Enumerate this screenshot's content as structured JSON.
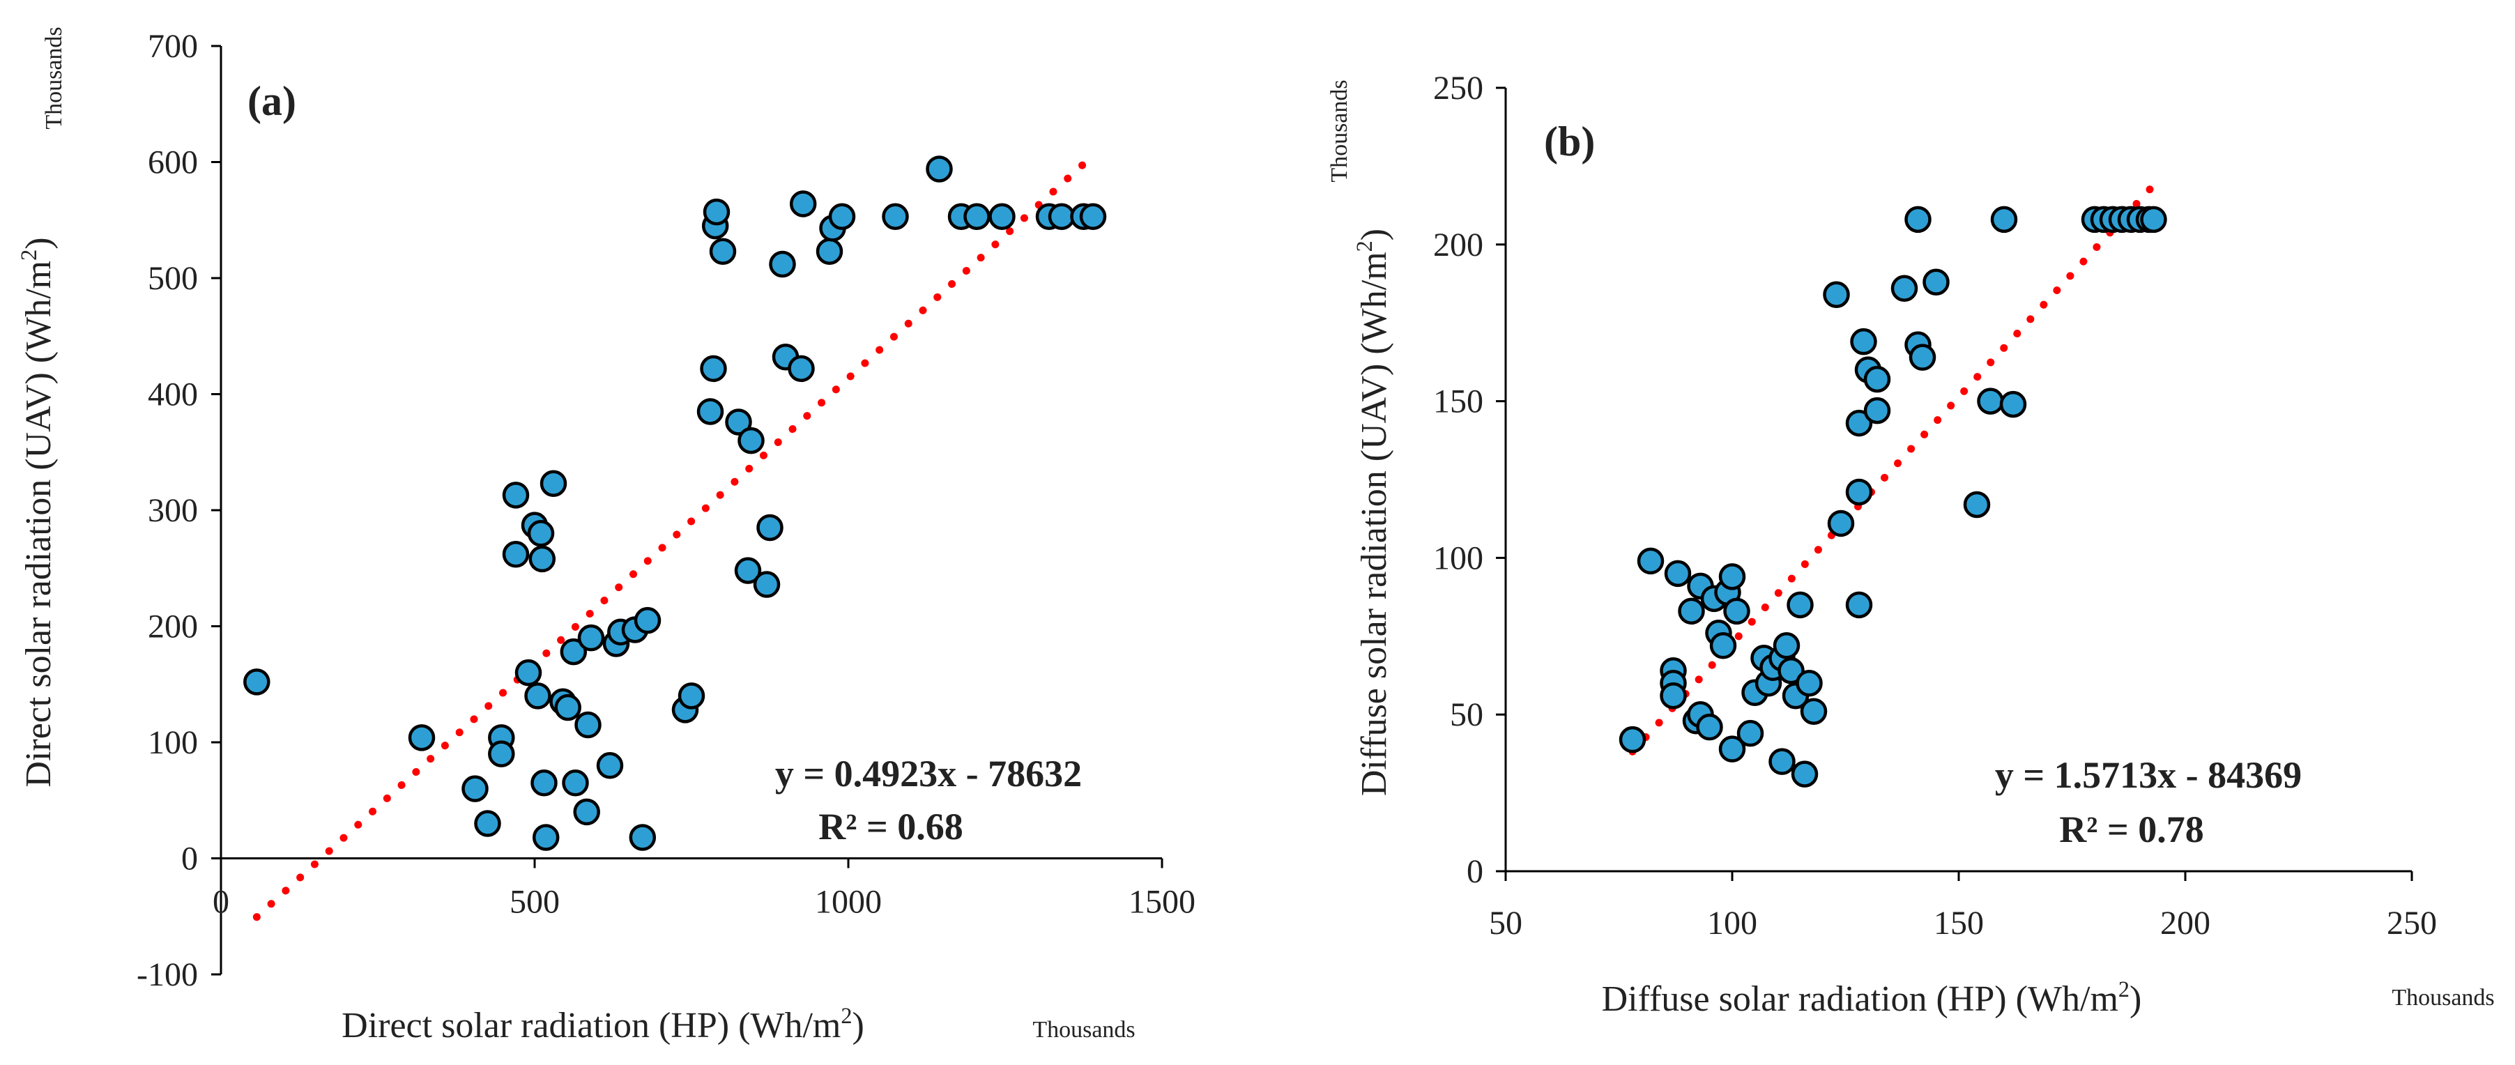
{
  "chart_data": [
    {
      "id": "a",
      "type": "scatter",
      "panel_label": "(a)",
      "xlabel": "Direct solar radiation (HP) (Wh/m",
      "xlabel_sup": "2",
      "xlabel_close": ")",
      "ylabel": "Direct solar radiation (UAV) (Wh/m",
      "ylabel_sup": "2",
      "ylabel_close": ")",
      "x_units_note": "Thousands",
      "y_units_note": "Thousands",
      "xlim": [
        0,
        1500
      ],
      "ylim": [
        -100,
        700
      ],
      "xticks": [
        0,
        500,
        1000,
        1500
      ],
      "yticks": [
        -100,
        0,
        100,
        200,
        300,
        400,
        500,
        600,
        700
      ],
      "grid": false,
      "equation": "y = 0.4923x - 78632",
      "r2": "R² = 0.68",
      "trendline": {
        "slope": 0.4923,
        "intercept_thousands": -78.632,
        "x_range": [
          57,
          1390
        ],
        "color": "#ff0000",
        "style": "dotted"
      },
      "marker_fill": "#2e9fd4",
      "marker_edge": "#000000",
      "points": [
        [
          57,
          152
        ],
        [
          320,
          104
        ],
        [
          405,
          60
        ],
        [
          425,
          30
        ],
        [
          447,
          104
        ],
        [
          447,
          90
        ],
        [
          470,
          313
        ],
        [
          470,
          262
        ],
        [
          490,
          160
        ],
        [
          500,
          287
        ],
        [
          505,
          140
        ],
        [
          510,
          280
        ],
        [
          512,
          258
        ],
        [
          515,
          65
        ],
        [
          518,
          18
        ],
        [
          530,
          323
        ],
        [
          545,
          135
        ],
        [
          553,
          130
        ],
        [
          562,
          178
        ],
        [
          565,
          65
        ],
        [
          583,
          40
        ],
        [
          585,
          115
        ],
        [
          590,
          190
        ],
        [
          620,
          80
        ],
        [
          630,
          185
        ],
        [
          637,
          195
        ],
        [
          660,
          197
        ],
        [
          672,
          18
        ],
        [
          680,
          205
        ],
        [
          740,
          128
        ],
        [
          750,
          140
        ],
        [
          780,
          385
        ],
        [
          785,
          422
        ],
        [
          788,
          545
        ],
        [
          790,
          557
        ],
        [
          800,
          523
        ],
        [
          825,
          376
        ],
        [
          840,
          248
        ],
        [
          845,
          360
        ],
        [
          870,
          236
        ],
        [
          875,
          285
        ],
        [
          895,
          512
        ],
        [
          900,
          432
        ],
        [
          925,
          422
        ],
        [
          928,
          564
        ],
        [
          970,
          523
        ],
        [
          975,
          543
        ],
        [
          990,
          553
        ],
        [
          1075,
          553
        ],
        [
          1145,
          594
        ],
        [
          1180,
          553
        ],
        [
          1205,
          553
        ],
        [
          1245,
          553
        ],
        [
          1320,
          553
        ],
        [
          1340,
          553
        ],
        [
          1375,
          553
        ],
        [
          1390,
          553
        ]
      ]
    },
    {
      "id": "b",
      "type": "scatter",
      "panel_label": "(b)",
      "xlabel": "Diffuse solar radiation (HP) (Wh/m",
      "xlabel_sup": "2",
      "xlabel_close": ")",
      "ylabel": "Diffuse solar radiation (UAV) (Wh/m",
      "ylabel_sup": "2",
      "ylabel_close": ")",
      "x_units_note": "Thousands",
      "y_units_note": "Thousands",
      "xlim": [
        50,
        250
      ],
      "ylim": [
        0,
        250
      ],
      "xticks": [
        50,
        100,
        150,
        200,
        250
      ],
      "yticks": [
        0,
        50,
        100,
        150,
        200,
        250
      ],
      "grid": false,
      "equation": "y = 1.5713x - 84369",
      "r2": "R² = 0.78",
      "trendline": {
        "slope": 1.5713,
        "intercept_thousands": -84.369,
        "x_range": [
          78,
          193
        ],
        "color": "#ff0000",
        "style": "dotted"
      },
      "marker_fill": "#2e9fd4",
      "marker_edge": "#000000",
      "points": [
        [
          78,
          42
        ],
        [
          82,
          99
        ],
        [
          87,
          64
        ],
        [
          87,
          60
        ],
        [
          87,
          56
        ],
        [
          88,
          95
        ],
        [
          91,
          83
        ],
        [
          92,
          48
        ],
        [
          93,
          91
        ],
        [
          93,
          50
        ],
        [
          95,
          46
        ],
        [
          96,
          87
        ],
        [
          97,
          76
        ],
        [
          98,
          72
        ],
        [
          99,
          89
        ],
        [
          100,
          39
        ],
        [
          100,
          94
        ],
        [
          101,
          83
        ],
        [
          104,
          44
        ],
        [
          105,
          57
        ],
        [
          107,
          68
        ],
        [
          108,
          60
        ],
        [
          109,
          65
        ],
        [
          111,
          68
        ],
        [
          111,
          35
        ],
        [
          112,
          72
        ],
        [
          113,
          64
        ],
        [
          114,
          56
        ],
        [
          115,
          85
        ],
        [
          116,
          31
        ],
        [
          117,
          60
        ],
        [
          118,
          51
        ],
        [
          123,
          184
        ],
        [
          124,
          111
        ],
        [
          128,
          143
        ],
        [
          128,
          121
        ],
        [
          128,
          85
        ],
        [
          129,
          169
        ],
        [
          130,
          160
        ],
        [
          132,
          157
        ],
        [
          132,
          147
        ],
        [
          138,
          186
        ],
        [
          141,
          208
        ],
        [
          141,
          168
        ],
        [
          142,
          164
        ],
        [
          145,
          188
        ],
        [
          154,
          117
        ],
        [
          157,
          150
        ],
        [
          160,
          208
        ],
        [
          162,
          149
        ],
        [
          180,
          208
        ],
        [
          182,
          208
        ],
        [
          184,
          208
        ],
        [
          186,
          208
        ],
        [
          188,
          208
        ],
        [
          190,
          208
        ],
        [
          192,
          208
        ],
        [
          193,
          208
        ]
      ]
    }
  ]
}
